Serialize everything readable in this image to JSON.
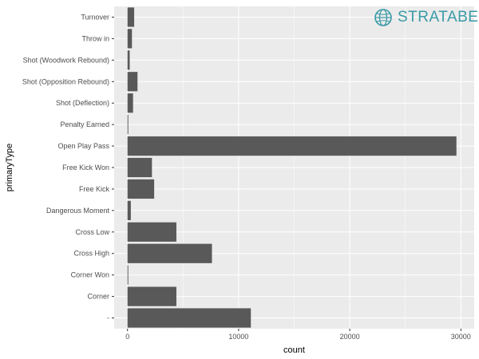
{
  "brand": {
    "name": "STRATABET",
    "color": "#3a9aa6",
    "icon": "globe-icon"
  },
  "chart_data": {
    "type": "bar",
    "orientation": "horizontal",
    "categories": [
      "Turnover",
      "Throw in",
      "Shot (Woodwork Rebound)",
      "Shot (Opposition Rebound)",
      "Shot (Deflection)",
      "Penalty Earned",
      "Open Play Pass",
      "Free Kick Won",
      "Free Kick",
      "Dangerous Moment",
      "Cross Low",
      "Cross High",
      "Corner Won",
      "Corner",
      "-"
    ],
    "values": [
      600,
      400,
      200,
      900,
      500,
      50,
      29600,
      2200,
      2400,
      300,
      4400,
      7600,
      50,
      4400,
      11100
    ],
    "xlabel": "count",
    "ylabel": "primaryType",
    "xlim": [
      -1200,
      31200
    ],
    "xticks": [
      0,
      10000,
      20000,
      30000
    ],
    "grid": true,
    "colors": {
      "bar": "#595959",
      "panel": "#ebebeb",
      "grid": "#ffffff"
    }
  }
}
